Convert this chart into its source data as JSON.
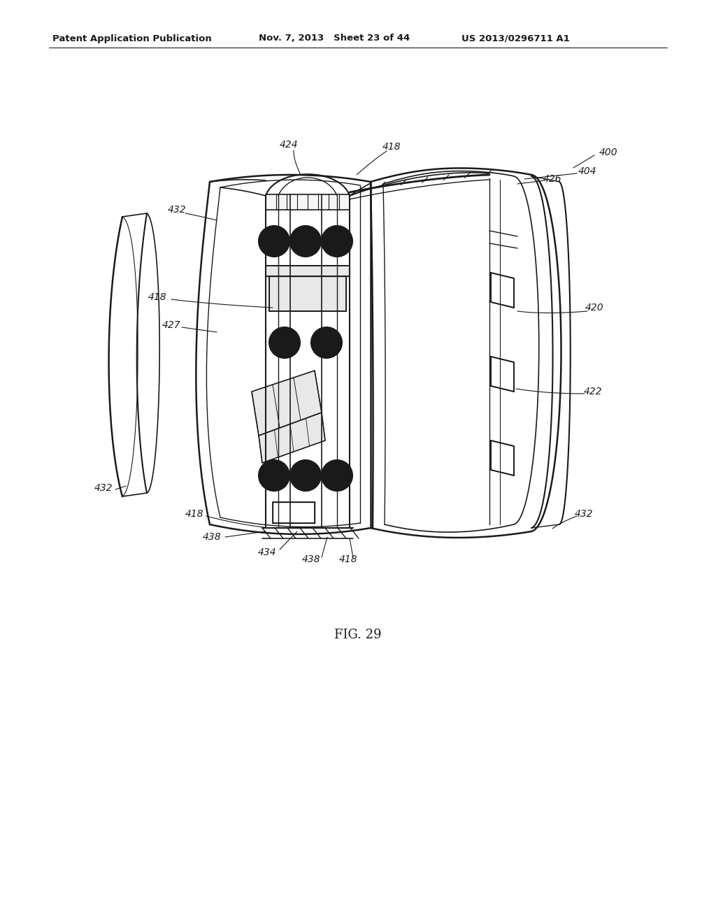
{
  "bg_color": "#ffffff",
  "line_color": "#1a1a1a",
  "header_left": "Patent Application Publication",
  "header_mid": "Nov. 7, 2013   Sheet 23 of 44",
  "header_right": "US 2013/0296711 A1",
  "figure_label": "FIG. 29",
  "page_width": 10.24,
  "page_height": 13.2,
  "dpi": 100
}
